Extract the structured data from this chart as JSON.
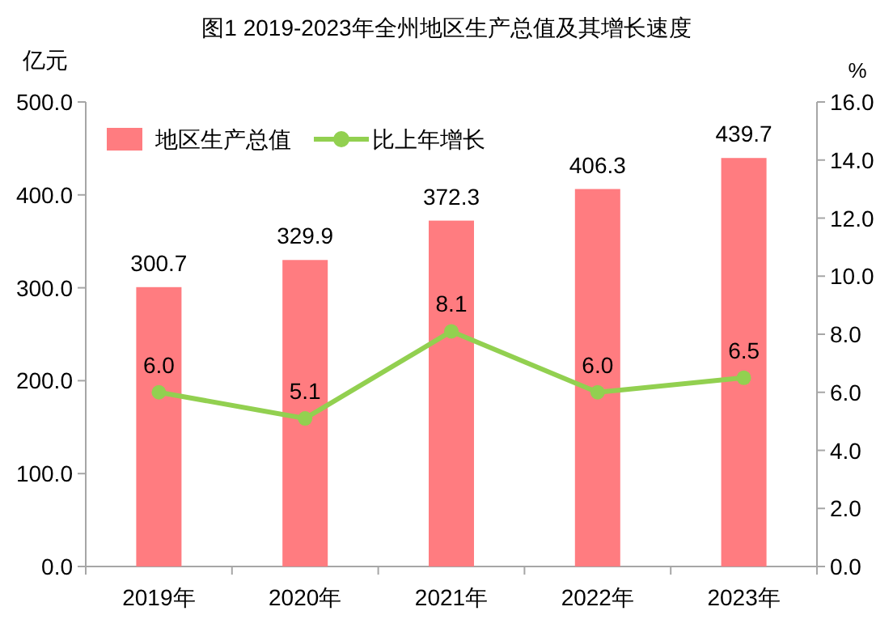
{
  "chart_data": {
    "type": "bar",
    "title": "图1 2019-2023年全州地区生产总值及其增长速度",
    "ylabel": "亿元",
    "y2label": "%",
    "categories": [
      "2019年",
      "2020年",
      "2021年",
      "2022年",
      "2023年"
    ],
    "series": [
      {
        "name": "地区生产总值",
        "color": "#ff7c80",
        "values": [
          300.7,
          329.9,
          372.3,
          406.3,
          439.7
        ],
        "value_labels": [
          "300.7",
          "329.9",
          "372.3",
          "406.3",
          "439.7"
        ]
      },
      {
        "name": "比上年增长",
        "type": "line",
        "axis": "y2",
        "color": "#92d050",
        "marker": "circle",
        "values": [
          6.0,
          5.1,
          8.1,
          6.0,
          6.5
        ],
        "value_labels": [
          "6.0",
          "5.1",
          "8.1",
          "6.0",
          "6.5"
        ]
      }
    ],
    "ylim": [
      0,
      500
    ],
    "yticks": [
      {
        "value": 0,
        "label": "0.0"
      },
      {
        "value": 100,
        "label": "100.0"
      },
      {
        "value": 200,
        "label": "200.0"
      },
      {
        "value": 300,
        "label": "300.0"
      },
      {
        "value": 400,
        "label": "400.0"
      },
      {
        "value": 500,
        "label": "500.0"
      }
    ],
    "y2lim": [
      0,
      16
    ],
    "y2ticks": [
      {
        "value": 0,
        "label": "0.0"
      },
      {
        "value": 2,
        "label": "2.0"
      },
      {
        "value": 4,
        "label": "4.0"
      },
      {
        "value": 6,
        "label": "6.0"
      },
      {
        "value": 8,
        "label": "8.0"
      },
      {
        "value": 10,
        "label": "10.0"
      },
      {
        "value": 12,
        "label": "12.0"
      },
      {
        "value": 14,
        "label": "14.0"
      },
      {
        "value": 16,
        "label": "16.0"
      }
    ],
    "legend": "top left",
    "grid": false
  }
}
